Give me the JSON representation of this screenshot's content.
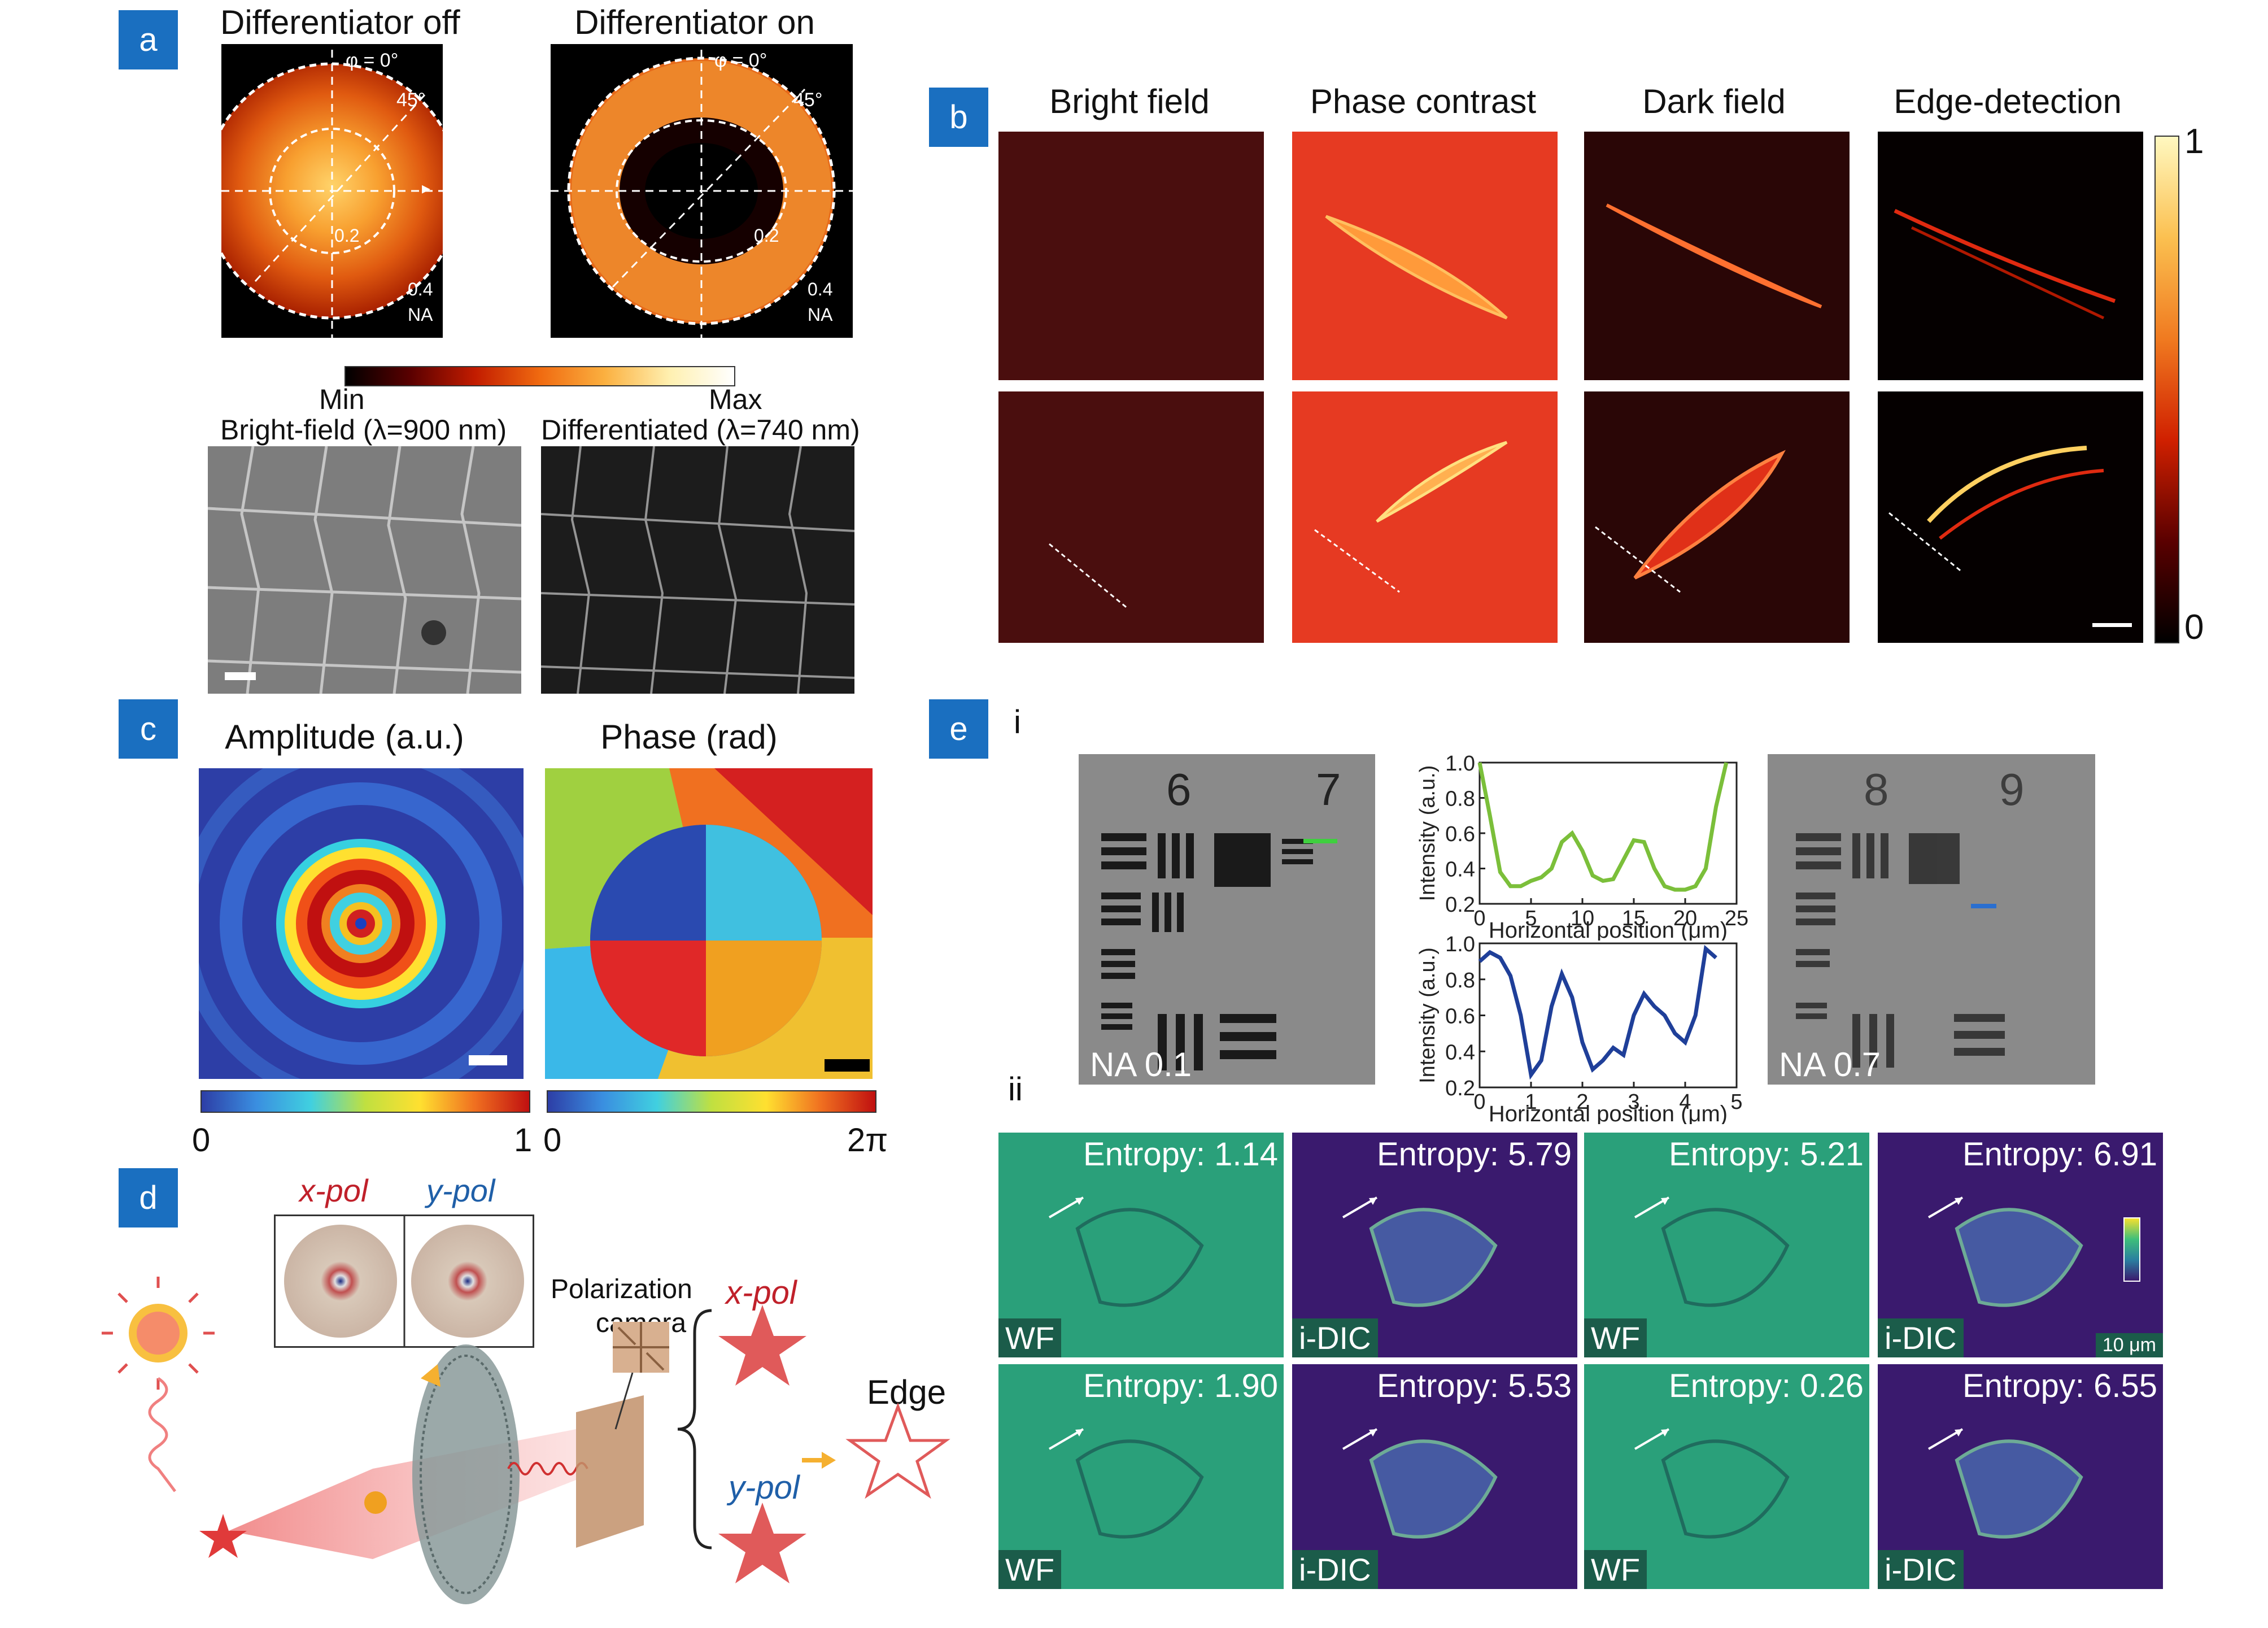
{
  "panel_a": {
    "label": "a",
    "title_off": "Differentiator off",
    "title_on": "Differentiator on",
    "phi_label": "φ = 0°",
    "angle_label": "45°",
    "inner_na": "0.2",
    "outer_na": "0.4",
    "na_label": "NA",
    "cbar_min": "Min",
    "cbar_max": "Max",
    "bright_title": "Bright-field (λ=900 nm)",
    "diff_title": "Differentiated (λ=740 nm)"
  },
  "panel_b": {
    "label": "b",
    "columns": [
      "Bright field",
      "Phase contrast",
      "Dark field",
      "Edge-detection"
    ],
    "cbar_top": "1",
    "cbar_bottom": "0"
  },
  "panel_c": {
    "label": "c",
    "amp_title": "Amplitude (a.u.)",
    "phase_title": "Phase (rad)",
    "amp_min": "0",
    "amp_max": "1",
    "phase_min": "0",
    "phase_max": "2π"
  },
  "panel_d": {
    "label": "d",
    "xpol": "x-pol",
    "ypol": "y-pol",
    "camera_line1": "Polarization",
    "camera_line2": "camera",
    "edge": "Edge"
  },
  "panel_e": {
    "label": "e",
    "sub_i": "i",
    "sub_ii": "ii",
    "left_na": "NA 0.1",
    "right_na": "NA 0.7",
    "group_6": "6",
    "group_7": "7",
    "group_8": "8",
    "group_9": "9",
    "ylabel": "Intensity (a.u.)",
    "xlabel": "Horizontal position (μm)",
    "plot1_yticks": [
      "1.0",
      "0.8",
      "0.6",
      "0.4",
      "0.2"
    ],
    "plot1_xticks": [
      "0",
      "5",
      "10",
      "15",
      "20",
      "25"
    ],
    "plot2_yticks": [
      "1.0",
      "0.8",
      "0.6",
      "0.4",
      "0.2"
    ],
    "plot2_xticks": [
      "0",
      "1",
      "2",
      "3",
      "4",
      "5"
    ],
    "tiles": [
      {
        "tag": "WF",
        "entropy": "Entropy: 1.14"
      },
      {
        "tag": "i-DIC",
        "entropy": "Entropy: 5.79"
      },
      {
        "tag": "WF",
        "entropy": "Entropy: 5.21"
      },
      {
        "tag": "i-DIC",
        "entropy": "Entropy: 6.91"
      },
      {
        "tag": "WF",
        "entropy": "Entropy: 1.90"
      },
      {
        "tag": "i-DIC",
        "entropy": "Entropy: 5.53"
      },
      {
        "tag": "WF",
        "entropy": "Entropy: 0.26"
      },
      {
        "tag": "i-DIC",
        "entropy": "Entropy: 6.55"
      }
    ],
    "scalebar": "10 μm"
  },
  "colors": {
    "panel_label_bg": "#1a6fc0",
    "green_profile": "#7bbf3a",
    "blue_profile": "#1f3f99",
    "xpol_red": "#c0202a",
    "ypol_blue": "#1f5fa8"
  },
  "chart_data": [
    {
      "type": "line",
      "xlabel": "Horizontal position (μm)",
      "ylabel": "Intensity (a.u.)",
      "xlim": [
        0,
        25
      ],
      "ylim": [
        0.2,
        1.0
      ],
      "series": [
        {
          "x": [
            0,
            1,
            2,
            3,
            4,
            5,
            6,
            7,
            8,
            9,
            10,
            11,
            12,
            13,
            14,
            15,
            16,
            17,
            18,
            19,
            20,
            21,
            22,
            23,
            24
          ],
          "values": [
            1.0,
            0.7,
            0.38,
            0.3,
            0.3,
            0.33,
            0.35,
            0.4,
            0.55,
            0.6,
            0.5,
            0.36,
            0.33,
            0.34,
            0.45,
            0.56,
            0.55,
            0.4,
            0.3,
            0.28,
            0.28,
            0.3,
            0.4,
            0.75,
            1.0
          ]
        }
      ]
    },
    {
      "type": "line",
      "xlabel": "Horizontal position (μm)",
      "ylabel": "Intensity (a.u.)",
      "xlim": [
        0,
        5
      ],
      "ylim": [
        0.2,
        1.0
      ],
      "series": [
        {
          "x": [
            0,
            0.2,
            0.4,
            0.6,
            0.8,
            1.0,
            1.2,
            1.4,
            1.6,
            1.8,
            2.0,
            2.2,
            2.4,
            2.6,
            2.8,
            3.0,
            3.2,
            3.4,
            3.6,
            3.8,
            4.0,
            4.2,
            4.4,
            4.6
          ],
          "values": [
            0.9,
            0.95,
            0.92,
            0.82,
            0.6,
            0.27,
            0.35,
            0.65,
            0.83,
            0.7,
            0.45,
            0.3,
            0.35,
            0.42,
            0.38,
            0.6,
            0.72,
            0.65,
            0.6,
            0.5,
            0.45,
            0.6,
            0.97,
            0.92
          ]
        }
      ]
    }
  ]
}
